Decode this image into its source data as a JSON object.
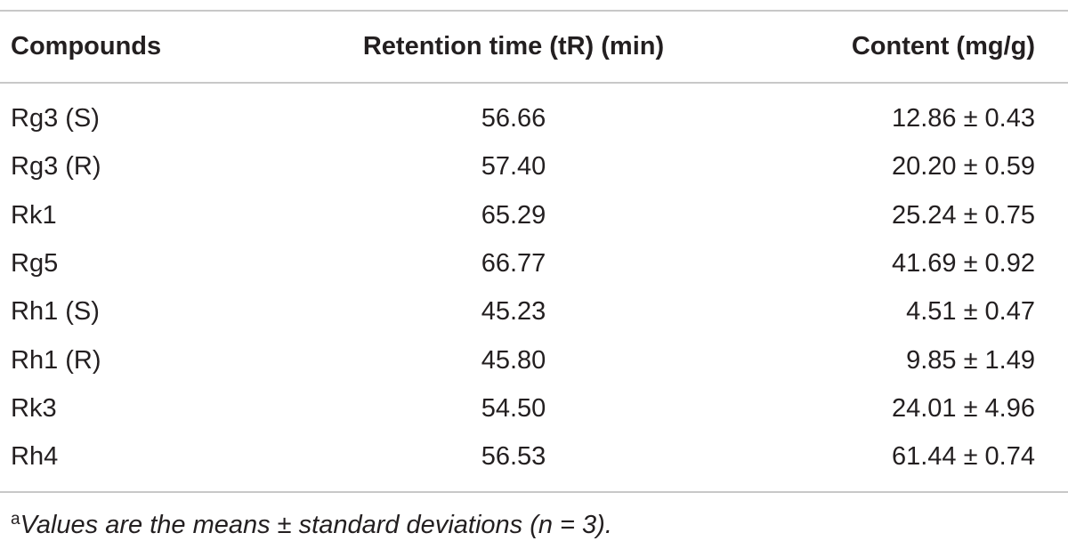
{
  "table": {
    "headers": [
      "Compounds",
      "Retention time (tR) (min)",
      "Content (mg/g)"
    ],
    "rows": [
      [
        "Rg3 (S)",
        "56.66",
        "12.86 ± 0.43"
      ],
      [
        "Rg3 (R)",
        "57.40",
        "20.20 ± 0.59"
      ],
      [
        "Rk1",
        "65.29",
        "25.24 ± 0.75"
      ],
      [
        "Rg5",
        "66.77",
        "41.69 ± 0.92"
      ],
      [
        "Rh1 (S)",
        "45.23",
        "4.51 ± 0.47"
      ],
      [
        "Rh1 (R)",
        "45.80",
        "9.85 ± 1.49"
      ],
      [
        "Rk3",
        "54.50",
        "24.01 ± 4.96"
      ],
      [
        "Rh4",
        "56.53",
        "61.44 ± 0.74"
      ]
    ]
  },
  "footnote": {
    "marker": "a",
    "text": "Values are the means ± standard deviations (n = 3)."
  }
}
